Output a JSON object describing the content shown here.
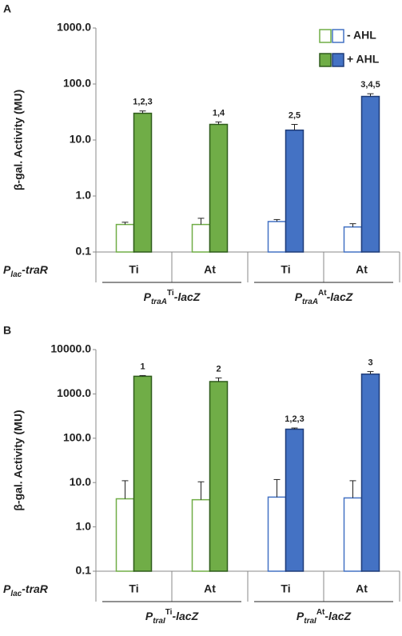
{
  "chart_data": [
    {
      "type": "bar",
      "panel": "A",
      "ylabel": "β-gal. Activity (MU)",
      "log_scale": true,
      "ylim": [
        0.1,
        1000
      ],
      "yticks": [
        0.1,
        {
          "value": 1,
          "label": "1.0"
        },
        {
          "value": 10,
          "label": "10.0"
        },
        {
          "value": 100,
          "label": "100.0"
        },
        {
          "value": 1000,
          "label": "1000.0"
        }
      ],
      "row_label": {
        "parts": [
          {
            "text": "P",
            "shift": "none"
          },
          {
            "text": "lac",
            "shift": "sub"
          },
          {
            "text": "-traR",
            "shift": "none"
          }
        ]
      },
      "categories": [
        "Ti",
        "At",
        "Ti",
        "At"
      ],
      "groups": [
        {
          "parts": [
            {
              "text": "P",
              "shift": "none"
            },
            {
              "text": "traA",
              "shift": "sub"
            },
            {
              "text": "Ti",
              "shift": "sup"
            },
            {
              "text": "-lacZ",
              "shift": "none"
            }
          ]
        },
        {
          "parts": [
            {
              "text": "P",
              "shift": "none"
            },
            {
              "text": "traA",
              "shift": "sub"
            },
            {
              "text": "At",
              "shift": "sup"
            },
            {
              "text": "-lacZ",
              "shift": "none"
            }
          ]
        }
      ],
      "legend": true,
      "legend_loc": "upper right",
      "series": [
        {
          "name": "- AHL",
          "filled": false,
          "colors": [
            "#70ad47",
            "#70ad47",
            "#4472c4",
            "#4472c4"
          ],
          "edge_colors": [
            "#70ad47",
            "#70ad47",
            "#4472c4",
            "#4472c4"
          ],
          "values": [
            0.31,
            0.31,
            0.35,
            0.28
          ],
          "errors": [
            0.03,
            0.09,
            0.03,
            0.04
          ]
        },
        {
          "name": "+ AHL",
          "filled": true,
          "colors": [
            "#70ad47",
            "#70ad47",
            "#4472c4",
            "#4472c4"
          ],
          "edge_colors": [
            "#2f5c1c",
            "#2f5c1c",
            "#1f3c78",
            "#1f3c78"
          ],
          "values": [
            30,
            19,
            15,
            60
          ],
          "errors": [
            3,
            2,
            4,
            7
          ],
          "annotations": [
            "1,2,3",
            "1,4",
            "2,5",
            "3,4,5"
          ]
        }
      ]
    },
    {
      "type": "bar",
      "panel": "B",
      "ylabel": "β-gal. Activity (MU)",
      "log_scale": true,
      "ylim": [
        0.1,
        10000
      ],
      "yticks": [
        0.1,
        {
          "value": 1,
          "label": "1.0"
        },
        {
          "value": 10,
          "label": "10.0"
        },
        {
          "value": 100,
          "label": "100.0"
        },
        {
          "value": 1000,
          "label": "1000.0"
        },
        {
          "value": 10000,
          "label": "10000.0"
        }
      ],
      "row_label": {
        "parts": [
          {
            "text": "P",
            "shift": "none"
          },
          {
            "text": "lac",
            "shift": "sub"
          },
          {
            "text": "-traR",
            "shift": "none"
          }
        ]
      },
      "categories": [
        "Ti",
        "At",
        "Ti",
        "At"
      ],
      "groups": [
        {
          "parts": [
            {
              "text": "P",
              "shift": "none"
            },
            {
              "text": "traI",
              "shift": "sub"
            },
            {
              "text": "Ti",
              "shift": "sup"
            },
            {
              "text": "-lacZ",
              "shift": "none"
            }
          ]
        },
        {
          "parts": [
            {
              "text": "P",
              "shift": "none"
            },
            {
              "text": "traI",
              "shift": "sub"
            },
            {
              "text": "At",
              "shift": "sup"
            },
            {
              "text": "-lacZ",
              "shift": "none"
            }
          ]
        }
      ],
      "legend": false,
      "series": [
        {
          "name": "- AHL",
          "filled": false,
          "colors": [
            "#70ad47",
            "#70ad47",
            "#4472c4",
            "#4472c4"
          ],
          "edge_colors": [
            "#70ad47",
            "#70ad47",
            "#4472c4",
            "#4472c4"
          ],
          "values": [
            4.3,
            4.1,
            4.7,
            4.5
          ],
          "errors": [
            6.7,
            6.3,
            7,
            6.5
          ]
        },
        {
          "name": "+ AHL",
          "filled": true,
          "colors": [
            "#70ad47",
            "#70ad47",
            "#4472c4",
            "#4472c4"
          ],
          "edge_colors": [
            "#2f5c1c",
            "#2f5c1c",
            "#1f3c78",
            "#1f3c78"
          ],
          "values": [
            2500,
            1900,
            160,
            2800
          ],
          "errors": [
            100,
            400,
            10,
            400
          ],
          "annotations": [
            "1",
            "2",
            "1,2,3",
            "3"
          ]
        }
      ]
    }
  ]
}
